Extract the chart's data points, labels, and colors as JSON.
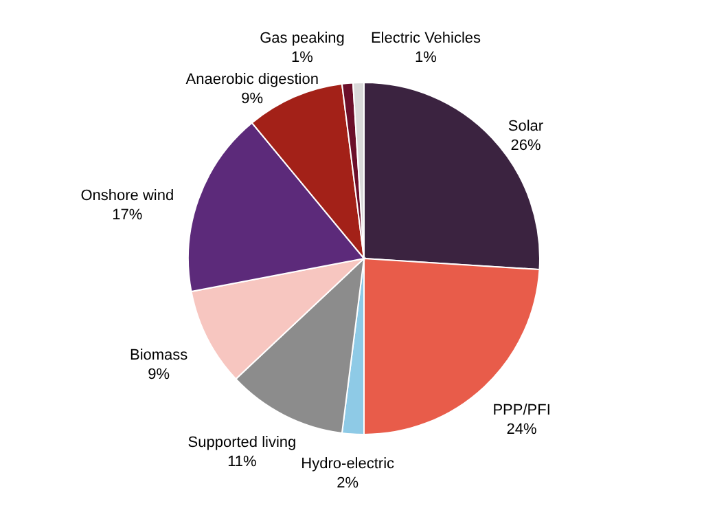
{
  "chart_data": {
    "type": "pie",
    "categories": [
      "Solar",
      "PPP/PFI",
      "Hydro-electric",
      "Supported living",
      "Biomass",
      "Onshore wind",
      "Anaerobic digestion",
      "Gas peaking",
      "Electric Vehicles"
    ],
    "values": [
      26,
      24,
      2,
      11,
      9,
      17,
      9,
      1,
      1
    ],
    "value_labels": [
      "26%",
      "24%",
      "2%",
      "11%",
      "9%",
      "17%",
      "9%",
      "1%",
      "1%"
    ],
    "colors": [
      "#3b2340",
      "#e85c4a",
      "#8ecae6",
      "#8c8c8c",
      "#f7c6c0",
      "#5c2a7a",
      "#a32118",
      "#6b0f2a",
      "#d9d9d9"
    ]
  }
}
